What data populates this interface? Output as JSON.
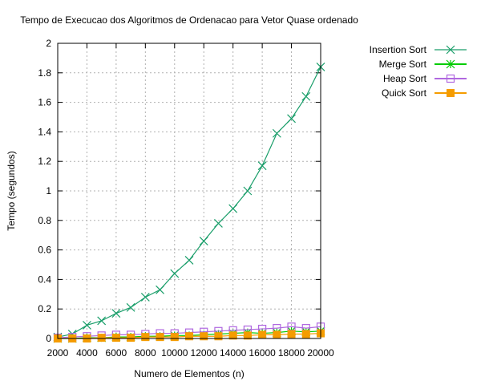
{
  "chart_data": {
    "type": "line",
    "title": "Tempo de Execucao dos Algoritmos de Ordenacao para Vetor Quase ordenado",
    "xlabel": "Numero de Elementos (n)",
    "ylabel": "Tempo (segundos)",
    "xlim": [
      2000,
      20000
    ],
    "ylim": [
      0,
      2
    ],
    "xticks": [
      2000,
      4000,
      6000,
      8000,
      10000,
      12000,
      14000,
      16000,
      18000,
      20000
    ],
    "yticks": [
      0,
      0.2,
      0.4,
      0.6,
      0.8,
      1,
      1.2,
      1.4,
      1.6,
      1.8,
      2
    ],
    "grid": true,
    "legend_position": "top-right",
    "x": [
      2000,
      3000,
      4000,
      5000,
      6000,
      7000,
      8000,
      9000,
      10000,
      11000,
      12000,
      13000,
      14000,
      15000,
      16000,
      17000,
      18000,
      19000,
      20000
    ],
    "series": [
      {
        "name": "Insertion Sort",
        "color": "#1a9e6a",
        "marker": "x",
        "values": [
          0.01,
          0.03,
          0.09,
          0.12,
          0.17,
          0.21,
          0.28,
          0.33,
          0.44,
          0.53,
          0.66,
          0.78,
          0.88,
          1.0,
          1.17,
          1.39,
          1.49,
          1.64,
          1.84
        ]
      },
      {
        "name": "Merge Sort",
        "color": "#00cc00",
        "marker": "star",
        "values": [
          0.0,
          0.0,
          0.005,
          0.005,
          0.01,
          0.01,
          0.015,
          0.015,
          0.02,
          0.02,
          0.025,
          0.03,
          0.035,
          0.04,
          0.035,
          0.04,
          0.05,
          0.045,
          0.05
        ]
      },
      {
        "name": "Heap Sort",
        "color": "#b068e0",
        "marker": "square-open",
        "values": [
          0.005,
          0.01,
          0.015,
          0.02,
          0.025,
          0.025,
          0.03,
          0.035,
          0.035,
          0.04,
          0.045,
          0.05,
          0.055,
          0.06,
          0.065,
          0.07,
          0.08,
          0.07,
          0.08
        ]
      },
      {
        "name": "Quick Sort",
        "color": "#f59c00",
        "marker": "square-filled",
        "values": [
          0.0,
          0.0,
          0.0,
          0.005,
          0.005,
          0.005,
          0.01,
          0.01,
          0.01,
          0.015,
          0.015,
          0.015,
          0.02,
          0.02,
          0.025,
          0.025,
          0.03,
          0.03,
          0.035
        ]
      }
    ]
  }
}
